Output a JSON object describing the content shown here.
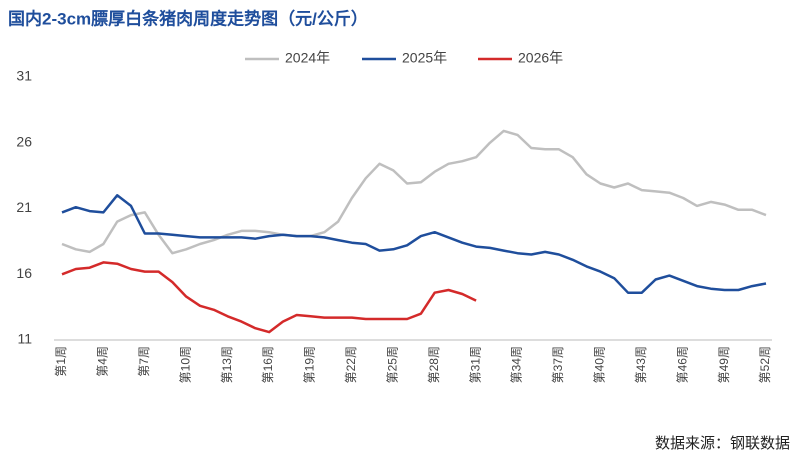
{
  "chart_data": {
    "type": "line",
    "title": "国内2-3cm膘厚白条猪肉周度走势图（元/公斤）",
    "source": "数据来源：钢联数据",
    "categories": [
      "第1周",
      null,
      null,
      "第4周",
      null,
      null,
      "第7周",
      null,
      null,
      "第10周",
      null,
      null,
      "第13周",
      null,
      null,
      "第16周",
      null,
      null,
      "第19周",
      null,
      null,
      "第22周",
      null,
      null,
      "第25周",
      null,
      null,
      "第28周",
      null,
      null,
      "第31周",
      null,
      null,
      "第34周",
      null,
      null,
      "第37周",
      null,
      null,
      "第40周",
      null,
      null,
      "第43周",
      null,
      null,
      "第46周",
      null,
      null,
      "第49周",
      null,
      null,
      "第52周"
    ],
    "series": [
      {
        "name": "2024年",
        "color": "#bfbfbf",
        "values": [
          18.3,
          17.9,
          17.7,
          18.3,
          20.0,
          20.5,
          20.7,
          19.0,
          17.6,
          17.9,
          18.3,
          18.6,
          19.0,
          19.3,
          19.3,
          19.2,
          19.0,
          18.9,
          18.9,
          19.2,
          20.0,
          21.8,
          23.3,
          24.4,
          23.9,
          22.9,
          23.0,
          23.8,
          24.4,
          24.6,
          24.9,
          26.0,
          26.9,
          26.6,
          25.6,
          25.5,
          25.5,
          24.9,
          23.6,
          22.9,
          22.6,
          22.9,
          22.4,
          22.3,
          22.2,
          21.8,
          21.2,
          21.5,
          21.3,
          20.9,
          20.9,
          20.5
        ]
      },
      {
        "name": "2025年",
        "color": "#1f4e9c",
        "values": [
          20.7,
          21.1,
          20.8,
          20.7,
          22.0,
          21.2,
          19.1,
          19.1,
          19.0,
          18.9,
          18.8,
          18.8,
          18.8,
          18.8,
          18.7,
          18.9,
          19.0,
          18.9,
          18.9,
          18.8,
          18.6,
          18.4,
          18.3,
          17.8,
          17.9,
          18.2,
          18.9,
          19.2,
          18.8,
          18.4,
          18.1,
          18.0,
          17.8,
          17.6,
          17.5,
          17.7,
          17.5,
          17.1,
          16.6,
          16.2,
          15.7,
          14.6,
          14.6,
          15.6,
          15.9,
          15.5,
          15.1,
          14.9,
          14.8,
          14.8,
          15.1,
          15.3
        ]
      },
      {
        "name": "2026年",
        "color": "#d42a2a",
        "values": [
          16.0,
          16.4,
          16.5,
          16.9,
          16.8,
          16.4,
          16.2,
          16.2,
          15.4,
          14.3,
          13.6,
          13.3,
          12.8,
          12.4,
          11.9,
          11.6,
          12.4,
          12.9,
          12.8,
          12.7,
          12.7,
          12.7,
          12.6,
          12.6,
          12.6,
          12.6,
          13.0,
          14.6,
          14.8,
          14.5,
          14.0,
          null,
          null,
          null,
          null,
          null,
          null,
          null,
          null,
          null,
          null,
          null,
          null,
          null,
          null,
          null,
          null,
          null,
          null,
          null,
          null,
          null
        ]
      }
    ],
    "ylim": [
      11,
      31
    ],
    "yticks": [
      11,
      16,
      21,
      26,
      31
    ],
    "grid": false,
    "legend": "top"
  }
}
